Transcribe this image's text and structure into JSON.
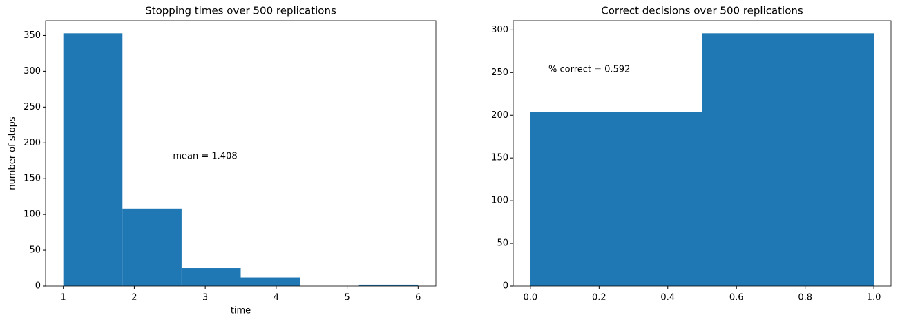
{
  "chart_data": [
    {
      "type": "histogram",
      "title": "Stopping times over 500 replications",
      "xlabel": "time",
      "ylabel": "number of stops",
      "bins": [
        1,
        1.8333,
        2.6667,
        3.5,
        4.3333,
        5.1667,
        6
      ],
      "values": [
        353,
        108,
        25,
        12,
        0,
        2
      ],
      "color": "#1f77b4",
      "xlim": [
        0.75,
        6.25
      ],
      "ylim": [
        0,
        370.65
      ],
      "xticks": [
        1,
        2,
        3,
        4,
        5,
        6
      ],
      "yticks": [
        0,
        50,
        100,
        150,
        200,
        250,
        300,
        350
      ],
      "annotation": "mean = 1.408"
    },
    {
      "type": "histogram",
      "title": "Correct decisions over 500 replications",
      "bins": [
        0,
        0.5,
        1
      ],
      "values": [
        204,
        296
      ],
      "color": "#1f77b4",
      "xlim": [
        -0.05,
        1.05
      ],
      "ylim": [
        0,
        310.8
      ],
      "xticks": [
        {
          "value": 0,
          "label": "0.0"
        },
        {
          "value": 0.2,
          "label": "0.2"
        },
        {
          "value": 0.4,
          "label": "0.4"
        },
        {
          "value": 0.6,
          "label": "0.6"
        },
        {
          "value": 0.8,
          "label": "0.8"
        },
        {
          "value": 1,
          "label": "1.0"
        }
      ],
      "yticks": [
        0,
        50,
        100,
        150,
        200,
        250,
        300
      ],
      "annotation": "% correct = 0.592"
    }
  ]
}
